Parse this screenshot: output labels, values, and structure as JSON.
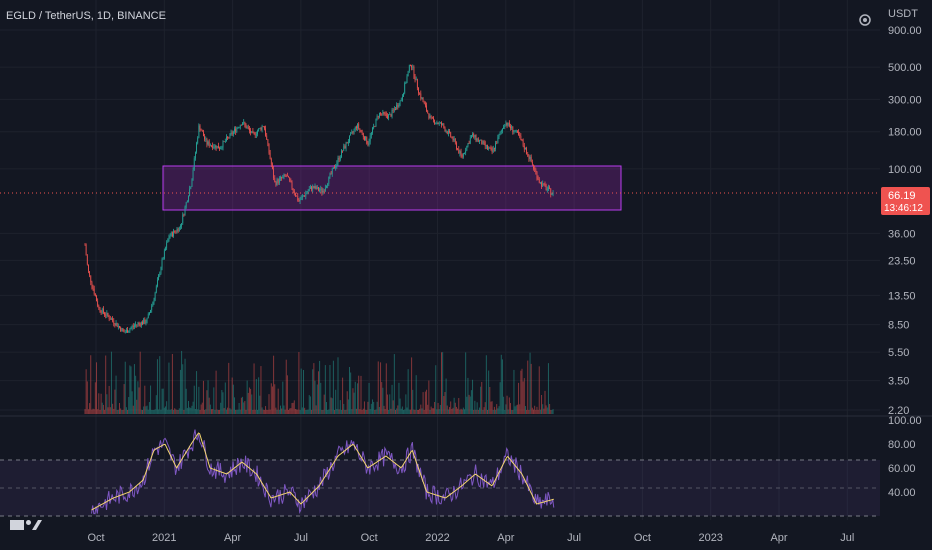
{
  "header": {
    "symbol_label": "EGLD / TetherUS, 1D, BINANCE"
  },
  "scale": {
    "currency_label": "USDT"
  },
  "price_badge": {
    "price": "66.19",
    "countdown": "13:46:12"
  },
  "colors": {
    "background": "#131722",
    "grid": "#1e222d",
    "axis_text": "#b2b5be",
    "up": "#26a69a",
    "down": "#ef5350",
    "zone_fill": "#9c27b0",
    "zone_stroke": "#ba3cf0",
    "rsi_line": "#7e57c2",
    "rsi_ma": "#f5d76e",
    "rsi_band": "#7e57c2",
    "price_line": "#ef5350"
  },
  "chart_data": [
    {
      "type": "candlestick",
      "title": "EGLD / TetherUS, 1D, BINANCE",
      "y_axis": {
        "scale": "log",
        "label": "USDT",
        "ticks": [
          "900.00",
          "500.00",
          "300.00",
          "180.00",
          "100.00",
          "36.00",
          "23.50",
          "13.50",
          "8.50",
          "5.50",
          "3.50",
          "2.20"
        ]
      },
      "x_axis": {
        "ticks": [
          "Oct",
          "2021",
          "Apr",
          "Jul",
          "Oct",
          "2022",
          "Apr",
          "Jul",
          "Oct",
          "2023",
          "Apr",
          "Jul"
        ]
      },
      "approx_close_path": [
        [
          "2020-09-01",
          30
        ],
        [
          "2020-09-05",
          20
        ],
        [
          "2020-09-20",
          11
        ],
        [
          "2020-10-10",
          9
        ],
        [
          "2020-10-25",
          7.5
        ],
        [
          "2020-11-10",
          8.5
        ],
        [
          "2020-11-25",
          9
        ],
        [
          "2020-12-05",
          13
        ],
        [
          "2020-12-15",
          22
        ],
        [
          "2020-12-25",
          34
        ],
        [
          "2021-01-10",
          40
        ],
        [
          "2021-01-25",
          80
        ],
        [
          "2021-02-05",
          200
        ],
        [
          "2021-02-15",
          150
        ],
        [
          "2021-03-05",
          140
        ],
        [
          "2021-03-20",
          170
        ],
        [
          "2021-04-05",
          210
        ],
        [
          "2021-04-20",
          170
        ],
        [
          "2021-05-05",
          200
        ],
        [
          "2021-05-20",
          80
        ],
        [
          "2021-06-05",
          90
        ],
        [
          "2021-06-22",
          60
        ],
        [
          "2021-07-10",
          75
        ],
        [
          "2021-07-25",
          70
        ],
        [
          "2021-08-20",
          130
        ],
        [
          "2021-09-10",
          200
        ],
        [
          "2021-09-25",
          150
        ],
        [
          "2021-10-10",
          240
        ],
        [
          "2021-10-25",
          230
        ],
        [
          "2021-11-10",
          300
        ],
        [
          "2021-11-23",
          540
        ],
        [
          "2021-12-05",
          330
        ],
        [
          "2021-12-20",
          220
        ],
        [
          "2022-01-05",
          200
        ],
        [
          "2022-01-20",
          160
        ],
        [
          "2022-02-01",
          120
        ],
        [
          "2022-02-15",
          170
        ],
        [
          "2022-03-01",
          150
        ],
        [
          "2022-03-15",
          130
        ],
        [
          "2022-04-02",
          210
        ],
        [
          "2022-04-20",
          170
        ],
        [
          "2022-05-05",
          120
        ],
        [
          "2022-05-20",
          80
        ],
        [
          "2022-06-08",
          66.19
        ]
      ],
      "current_price": 66.19
    },
    {
      "type": "area",
      "series": [
        {
          "values": []
        }
      ],
      "annotations": [
        "support/resistance zone between ~45 and ~105 USDT, from Jan 2021 to Sep 2022"
      ]
    },
    {
      "type": "line",
      "y_axis": {
        "ticks": [
          "100.00",
          "80.00",
          "60.00",
          "40.00"
        ],
        "range": [
          20,
          100
        ]
      },
      "bands": [
        30,
        50,
        70
      ],
      "approx_rsi_path": [
        [
          "2020-09-10",
          25
        ],
        [
          "2020-10-10",
          35
        ],
        [
          "2020-11-01",
          40
        ],
        [
          "2020-11-20",
          50
        ],
        [
          "2020-12-05",
          75
        ],
        [
          "2020-12-20",
          80
        ],
        [
          "2021-01-05",
          60
        ],
        [
          "2021-01-25",
          80
        ],
        [
          "2021-02-05",
          90
        ],
        [
          "2021-02-20",
          60
        ],
        [
          "2021-03-15",
          55
        ],
        [
          "2021-04-05",
          65
        ],
        [
          "2021-04-25",
          55
        ],
        [
          "2021-05-15",
          35
        ],
        [
          "2021-06-10",
          40
        ],
        [
          "2021-06-25",
          30
        ],
        [
          "2021-07-20",
          45
        ],
        [
          "2021-08-15",
          70
        ],
        [
          "2021-09-05",
          80
        ],
        [
          "2021-09-25",
          60
        ],
        [
          "2021-10-20",
          70
        ],
        [
          "2021-11-10",
          60
        ],
        [
          "2021-11-25",
          75
        ],
        [
          "2021-12-15",
          40
        ],
        [
          "2022-01-10",
          35
        ],
        [
          "2022-02-01",
          45
        ],
        [
          "2022-02-20",
          55
        ],
        [
          "2022-03-15",
          45
        ],
        [
          "2022-04-05",
          70
        ],
        [
          "2022-04-25",
          55
        ],
        [
          "2022-05-15",
          30
        ],
        [
          "2022-06-08",
          34
        ]
      ]
    }
  ]
}
